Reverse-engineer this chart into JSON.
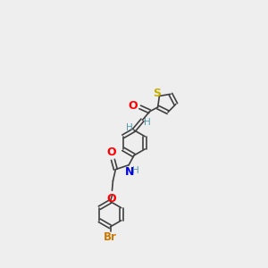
{
  "background_color": "#eeeeee",
  "bond_color": "#404040",
  "atom_colors": {
    "S": "#c8b000",
    "O": "#ff0000",
    "N": "#0000ee",
    "Br": "#cc7700",
    "H": "#5599aa"
  },
  "lw": 1.2,
  "fs": 7.5,
  "xlim": [
    0,
    10
  ],
  "ylim": [
    0,
    15
  ]
}
